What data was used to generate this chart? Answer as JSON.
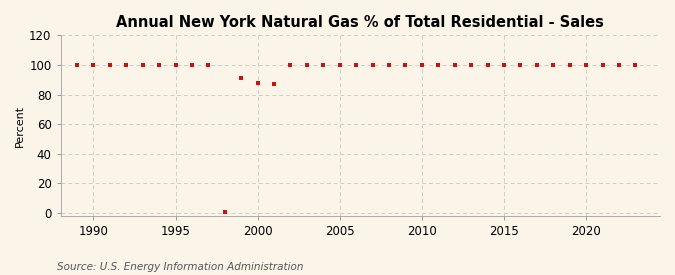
{
  "title": "Annual New York Natural Gas % of Total Residential - Sales",
  "ylabel": "Percent",
  "source": "Source: U.S. Energy Information Administration",
  "background_color": "#faf5e8",
  "plot_background_color": "#faf5e8",
  "marker_color": "#cc1111",
  "grid_color": "#cccccc",
  "xlim": [
    1988.0,
    2024.5
  ],
  "ylim": [
    -2,
    120
  ],
  "yticks": [
    0,
    20,
    40,
    60,
    80,
    100,
    120
  ],
  "xticks": [
    1990,
    1995,
    2000,
    2005,
    2010,
    2015,
    2020
  ],
  "years": [
    1989,
    1990,
    1991,
    1992,
    1993,
    1994,
    1995,
    1996,
    1997,
    1998,
    1999,
    2000,
    2001,
    2002,
    2003,
    2004,
    2005,
    2006,
    2007,
    2008,
    2009,
    2010,
    2011,
    2012,
    2013,
    2014,
    2015,
    2016,
    2017,
    2018,
    2019,
    2020,
    2021,
    2022,
    2023
  ],
  "values": [
    100,
    100,
    100,
    100,
    100,
    100,
    100,
    100,
    100,
    0.5,
    91.5,
    87.5,
    87.0,
    100,
    100,
    100,
    100,
    100,
    100,
    100,
    100,
    100,
    100,
    100,
    100,
    100,
    100,
    100,
    100,
    100,
    100,
    100,
    100,
    100,
    100
  ],
  "title_fontsize": 10.5,
  "tick_fontsize": 8.5,
  "ylabel_fontsize": 8,
  "source_fontsize": 7.5
}
